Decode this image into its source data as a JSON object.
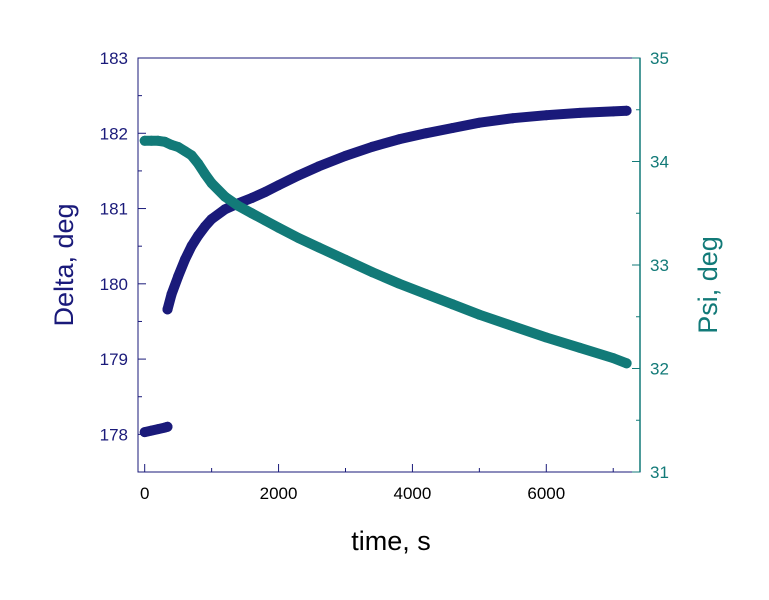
{
  "chart_data": {
    "type": "scatter",
    "xlabel": "time, s",
    "ylabel_left": "Delta, deg",
    "ylabel_right": "Psi, deg",
    "xlim": [
      -100,
      7400
    ],
    "ylim_left": [
      177.5,
      183
    ],
    "ylim_right": [
      31,
      35
    ],
    "x_ticks": [
      0,
      2000,
      4000,
      6000
    ],
    "y_left_ticks": [
      178,
      179,
      180,
      181,
      182,
      183
    ],
    "y_right_ticks": [
      31,
      32,
      33,
      34,
      35
    ],
    "grid": false,
    "colors": {
      "delta": "#1a1a7a",
      "psi": "#127a78"
    },
    "series": [
      {
        "axis": "left",
        "color": "#1a1a7a",
        "segments": [
          {
            "x": [
              0,
              100,
              200,
              300,
              340
            ],
            "y": [
              178.03,
              178.05,
              178.07,
              178.09,
              178.1
            ]
          },
          {
            "x": [
              340,
              400,
              500,
              600,
              700,
              800,
              900,
              1000,
              1200,
              1400,
              1600,
              1800,
              2000,
              2300,
              2600,
              3000,
              3400,
              3800,
              4200,
              4600,
              5000,
              5500,
              6000,
              6500,
              7000,
              7200
            ],
            "y": [
              179.66,
              179.86,
              180.1,
              180.32,
              180.5,
              180.64,
              180.76,
              180.86,
              180.99,
              181.07,
              181.14,
              181.22,
              181.31,
              181.44,
              181.56,
              181.7,
              181.82,
              181.92,
              182.0,
              182.07,
              182.14,
              182.2,
              182.24,
              182.27,
              182.29,
              182.3
            ]
          }
        ]
      },
      {
        "axis": "right",
        "color": "#127a78",
        "segments": [
          {
            "x": [
              0,
              100,
              200,
              300,
              400,
              500,
              600,
              700,
              800,
              900,
              1000,
              1200,
              1400,
              1600,
              1800,
              2000,
              2300,
              2600,
              3000,
              3400,
              3800,
              4200,
              4600,
              5000,
              5500,
              6000,
              6500,
              7000,
              7200
            ],
            "y": [
              34.2,
              34.2,
              34.2,
              34.19,
              34.16,
              34.14,
              34.1,
              34.06,
              33.98,
              33.88,
              33.79,
              33.66,
              33.57,
              33.5,
              33.43,
              33.36,
              33.26,
              33.17,
              33.05,
              32.93,
              32.82,
              32.72,
              32.62,
              32.52,
              32.41,
              32.3,
              32.2,
              32.1,
              32.05
            ]
          }
        ]
      }
    ]
  }
}
